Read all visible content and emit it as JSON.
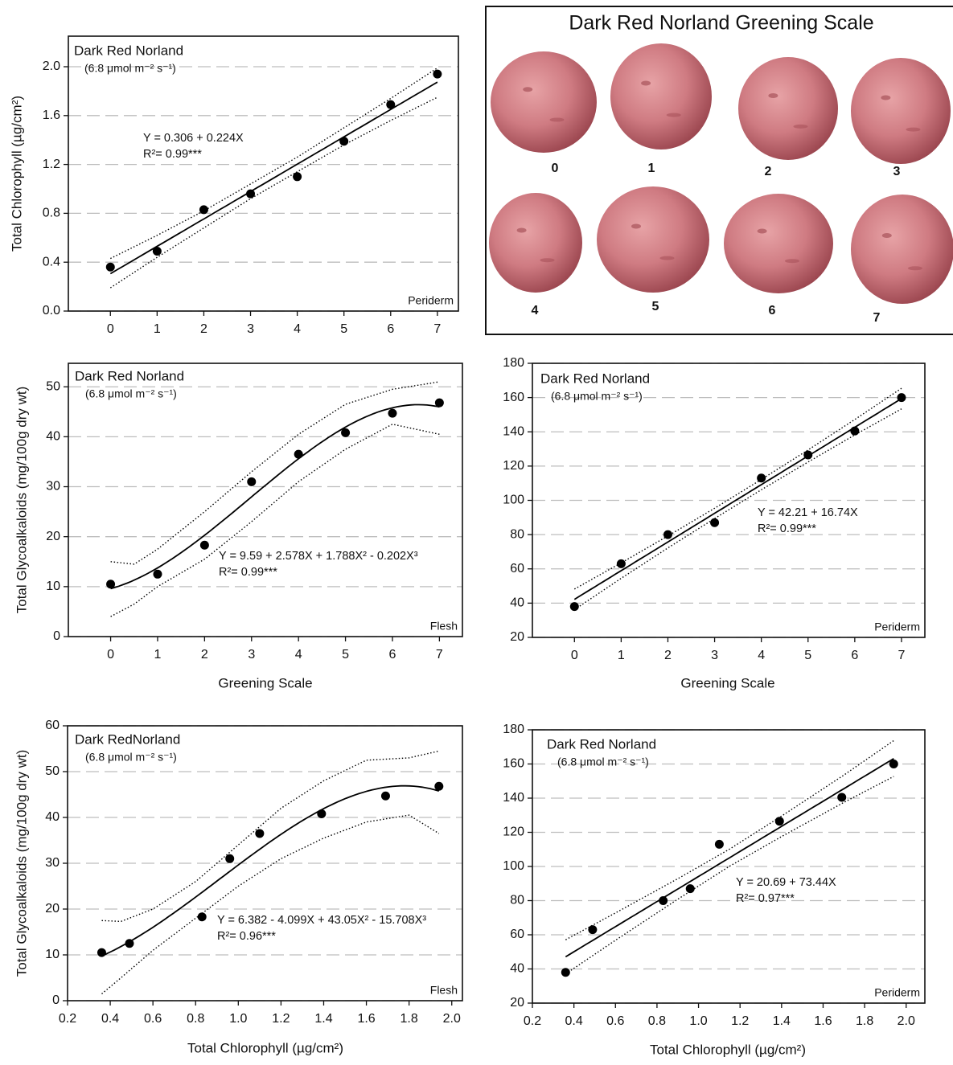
{
  "chart_data": [
    {
      "type": "scatter",
      "title": "Dark Red Norland",
      "subtitle": "(6.8 μmol m⁻² s⁻¹)",
      "equation": "Y = 0.306 + 0.224X",
      "r_squared": "R²= 0.99***",
      "tissue": "Periderm",
      "y_label": "Total Chlorophyll (µg/cm²)",
      "x": [
        0,
        1,
        2,
        3,
        4,
        5,
        6,
        7
      ],
      "values": [
        0.36,
        0.49,
        0.83,
        0.96,
        1.1,
        1.39,
        1.69,
        1.94
      ],
      "fit": [
        0.306,
        0.224
      ],
      "fit_range": [
        0,
        7
      ],
      "band": {
        "x": [
          0,
          1,
          2,
          3,
          4,
          5,
          6,
          7
        ],
        "upper": [
          0.43,
          0.62,
          0.82,
          1.04,
          1.26,
          1.5,
          1.74,
          1.99
        ],
        "lower": [
          0.19,
          0.44,
          0.68,
          0.92,
          1.14,
          1.36,
          1.56,
          1.75
        ]
      },
      "xlim": [
        -0.9,
        7.45
      ],
      "ylim": [
        0,
        2.25
      ],
      "xticks": [
        0,
        1,
        2,
        3,
        4,
        5,
        6,
        7
      ],
      "yticks": [
        {
          "value": 0,
          "label": "0.0"
        },
        0.4,
        0.8,
        1.2,
        1.6,
        {
          "value": 2,
          "label": "2.0"
        }
      ],
      "grid": true,
      "color": "#000000"
    },
    {
      "type": "scatter",
      "title": "Dark Red Norland",
      "subtitle": "(6.8 μmol m⁻² s⁻¹)",
      "equation": "Y = 9.59 + 2.578X + 1.788X² - 0.202X³",
      "r_squared": "R²= 0.99***",
      "tissue": "Flesh",
      "y_label": "Total Glycoalkaloids (mg/100g dry wt)",
      "x_label": "Greening Scale",
      "x": [
        0,
        1,
        2,
        3,
        4,
        5,
        6,
        7
      ],
      "values": [
        10.5,
        12.5,
        18.3,
        31,
        36.5,
        40.8,
        44.7,
        46.8
      ],
      "fit": [
        9.59,
        2.578,
        1.788,
        -0.202
      ],
      "fit_range": [
        0,
        7
      ],
      "band": {
        "x": [
          0,
          0.5,
          1,
          2,
          3,
          4,
          5,
          6,
          7
        ],
        "upper": [
          15,
          14.5,
          17.5,
          25,
          33,
          40.5,
          46.5,
          49.5,
          51
        ],
        "lower": [
          4,
          6.5,
          10,
          15.5,
          23,
          31,
          37.5,
          42.5,
          40.5
        ]
      },
      "xlim": [
        -0.9,
        7.49
      ],
      "ylim": [
        0,
        54.7
      ],
      "xticks": [
        0,
        1,
        2,
        3,
        4,
        5,
        6,
        7
      ],
      "yticks": [
        0,
        10,
        20,
        30,
        40,
        50
      ],
      "grid": true,
      "color": "#000000"
    },
    {
      "type": "scatter",
      "title": "Dark Red Norland",
      "subtitle": "(6.8 μmol m⁻² s⁻¹)",
      "equation": "Y = 42.21 + 16.74X",
      "r_squared": "R²= 0.99***",
      "tissue": "Periderm",
      "x_label": "Greening Scale",
      "x": [
        0,
        1,
        2,
        3,
        4,
        5,
        6,
        7
      ],
      "values": [
        38,
        63,
        80,
        87,
        113,
        126.5,
        140.5,
        160
      ],
      "fit": [
        42.21,
        16.74
      ],
      "fit_range": [
        0,
        7
      ],
      "band": {
        "x": [
          0,
          1,
          2,
          3,
          4,
          5,
          6,
          7
        ],
        "upper": [
          48.2,
          63.5,
          79.2,
          95.4,
          112.2,
          129.4,
          147.2,
          165.4
        ],
        "lower": [
          36.2,
          54.5,
          72.2,
          89.4,
          106.2,
          122.4,
          138.2,
          153.4
        ]
      },
      "xlim": [
        -0.9,
        7.5
      ],
      "ylim": [
        20,
        180
      ],
      "xticks": [
        0,
        1,
        2,
        3,
        4,
        5,
        6,
        7
      ],
      "yticks": [
        20,
        40,
        60,
        80,
        100,
        120,
        140,
        160,
        180
      ],
      "grid": true,
      "color": "#000000"
    },
    {
      "type": "scatter",
      "title": "Dark RedNorland",
      "subtitle": "(6.8 μmol m⁻² s⁻¹)",
      "equation": "Y = 6.382 - 4.099X + 43.05X² - 15.708X³",
      "r_squared": "R²= 0.96***",
      "tissue": "Flesh",
      "y_label": "Total Glycoalkaloids (mg/100g dry wt)",
      "x_label": "Total Chlorophyll (µg/cm²)",
      "x": [
        0.36,
        0.49,
        0.83,
        0.96,
        1.1,
        1.39,
        1.69,
        1.94
      ],
      "values": [
        10.5,
        12.5,
        18.3,
        31,
        36.5,
        40.8,
        44.7,
        46.8
      ],
      "fit": [
        6.382,
        -4.099,
        43.05,
        -15.708
      ],
      "fit_range": [
        0.36,
        1.94
      ],
      "band": {
        "x": [
          0.36,
          0.45,
          0.6,
          0.8,
          1.0,
          1.2,
          1.4,
          1.6,
          1.8,
          1.94
        ],
        "upper": [
          17.5,
          17.3,
          20,
          26,
          34,
          42,
          48,
          52.5,
          53,
          54.5
        ],
        "lower": [
          1.5,
          5,
          11,
          18,
          25,
          31,
          35.5,
          39,
          40.5,
          36.5
        ]
      },
      "xlim": [
        0.2,
        2.05
      ],
      "ylim": [
        0,
        60
      ],
      "xticks": [
        0.2,
        0.4,
        0.6,
        0.8,
        {
          "value": 1,
          "label": "1.0"
        },
        1.2,
        1.4,
        1.6,
        1.8,
        {
          "value": 2,
          "label": "2.0"
        }
      ],
      "yticks": [
        0,
        10,
        20,
        30,
        40,
        50,
        60
      ],
      "grid": true,
      "color": "#000000"
    },
    {
      "type": "scatter",
      "title": "Dark Red Norland",
      "subtitle": "(6.8 μmol m⁻² s⁻¹)",
      "equation": "Y = 20.69 + 73.44X",
      "r_squared": "R²= 0.97***",
      "tissue": "Periderm",
      "x_label": "Total Chlorophyll (µg/cm²)",
      "x": [
        0.36,
        0.49,
        0.83,
        0.96,
        1.1,
        1.39,
        1.69,
        1.94
      ],
      "values": [
        38,
        63,
        80,
        87,
        113,
        126.5,
        140.5,
        160
      ],
      "fit": [
        20.69,
        73.44
      ],
      "fit_range": [
        0.36,
        1.94
      ],
      "band": {
        "x": [
          0.36,
          0.6,
          0.9,
          1.15,
          1.4,
          1.7,
          1.94
        ],
        "upper": [
          57.1,
          72.8,
          92.8,
          110.2,
          129.5,
          153.5,
          173.7
        ],
        "lower": [
          37.1,
          56.8,
          80.8,
          100.2,
          117.5,
          137.5,
          152.7
        ]
      },
      "xlim": [
        0.2,
        2.09
      ],
      "ylim": [
        20,
        180
      ],
      "xticks": [
        0.2,
        0.4,
        0.6,
        0.8,
        {
          "value": 1,
          "label": "1.0"
        },
        1.2,
        1.4,
        1.6,
        1.8,
        {
          "value": 2,
          "label": "2.0"
        }
      ],
      "yticks": [
        20,
        40,
        60,
        80,
        100,
        120,
        140,
        160,
        180
      ],
      "grid": true,
      "color": "#000000"
    }
  ],
  "greening_scale": {
    "title": "Dark Red Norland Greening Scale",
    "labels": [
      "0",
      "1",
      "2",
      "3",
      "4",
      "5",
      "6",
      "7"
    ]
  }
}
